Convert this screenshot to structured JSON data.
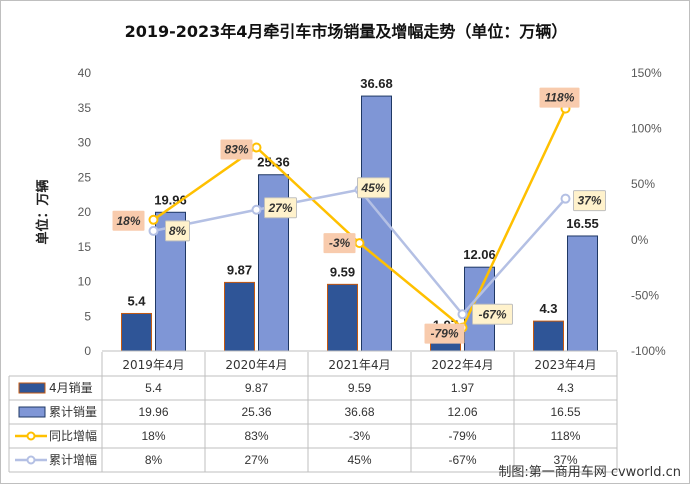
{
  "chart_data": {
    "type": "bar",
    "title": "2019-2023年4月牵引车市场销量及增幅走势（单位：万辆）",
    "ylabel": "单位：万辆",
    "categories": [
      "2019年4月",
      "2020年4月",
      "2021年4月",
      "2022年4月",
      "2023年4月"
    ],
    "ylim": [
      0,
      40
    ],
    "yticks": [
      0,
      5,
      10,
      15,
      20,
      25,
      30,
      35,
      40
    ],
    "y2lim": [
      -100,
      150
    ],
    "y2ticks": [
      "-100%",
      "-50%",
      "0%",
      "50%",
      "100%",
      "150%"
    ],
    "y2values": [
      -100,
      -50,
      0,
      50,
      100,
      150
    ],
    "grid": false,
    "bar_series": [
      {
        "name": "4月销量",
        "values": [
          5.4,
          9.87,
          9.59,
          1.97,
          4.3
        ],
        "labels": [
          "5.4",
          "9.87",
          "9.59",
          "1.97",
          "4.3"
        ],
        "color": "#2f5597"
      },
      {
        "name": "累计销量",
        "values": [
          19.96,
          25.36,
          36.68,
          12.06,
          16.55
        ],
        "labels": [
          "19.96",
          "25.36",
          "36.68",
          "12.06",
          "16.55"
        ],
        "color": "#7f96d6"
      }
    ],
    "line_series": [
      {
        "name": "同比增幅",
        "values": [
          18,
          83,
          -3,
          -79,
          118
        ],
        "labels": [
          "18%",
          "83%",
          "-3%",
          "-79%",
          "118%"
        ],
        "color": "#ffc000",
        "label_bg": "#f8cbad"
      },
      {
        "name": "累计增幅",
        "values": [
          8,
          27,
          45,
          -67,
          37
        ],
        "labels": [
          "8%",
          "27%",
          "45%",
          "-67%",
          "37%"
        ],
        "color": "#b4c0e4",
        "label_bg": "#fff2cc"
      }
    ]
  },
  "credit": "制图:第一商用车网 cvworld.cn"
}
